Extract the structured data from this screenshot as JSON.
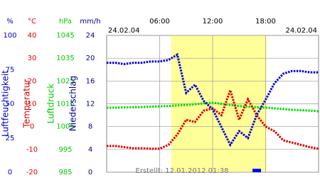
{
  "chart_data": {
    "type": "line",
    "date_left": "24.02.04",
    "date_right": "24.02.04",
    "footer": "Erstellt: 12.01.2012 01:38",
    "xlim": [
      0,
      24
    ],
    "xticks": [
      {
        "value": 6,
        "label": "06:00"
      },
      {
        "value": 12,
        "label": "12:00"
      },
      {
        "value": 18,
        "label": "18:00"
      }
    ],
    "shaded_region": [
      7.3,
      18.1
    ],
    "grid": true,
    "axes": [
      {
        "label": "Luftfeuchtigkeit",
        "unit": "%",
        "color": "#0000cc",
        "ylim": [
          0,
          100
        ],
        "yticks": [
          0,
          25,
          50,
          75,
          100
        ]
      },
      {
        "label": "Temperatur",
        "unit": "°C",
        "color": "#dd0000",
        "ylim": [
          -20,
          40
        ],
        "yticks": [
          -20,
          -10,
          0,
          10,
          20,
          30,
          40
        ]
      },
      {
        "label": "Luftdruck",
        "unit": "hPa",
        "color": "#00cc00",
        "ylim": [
          985,
          1045
        ],
        "yticks": [
          985,
          995,
          1005,
          1015,
          1025,
          1035,
          1045
        ]
      },
      {
        "label": "Niederschlag",
        "unit": "mm/h",
        "color": "#000088",
        "ylim": [
          0,
          24
        ],
        "yticks": [
          0,
          4,
          8,
          12,
          16,
          20,
          24
        ]
      }
    ],
    "x": [
      0,
      1,
      2,
      3,
      4,
      5,
      6,
      7,
      8,
      9,
      10,
      11,
      12,
      13,
      14,
      15,
      16,
      17,
      18,
      19,
      20,
      21,
      22,
      23,
      24
    ],
    "series": [
      {
        "axis": 2,
        "kind": "line",
        "color": "#00dd00",
        "values": [
          1013.3,
          1013.3,
          1013.4,
          1013.5,
          1013.6,
          1013.8,
          1013.9,
          1014,
          1014.3,
          1014.5,
          1014.8,
          1015.2,
          1015.5,
          1015,
          1014.5,
          1014,
          1013.8,
          1013.5,
          1013.3,
          1013,
          1012.7,
          1012.4,
          1012.2,
          1012,
          1011.7
        ]
      },
      {
        "axis": 1,
        "kind": "line",
        "color": "#dd0000",
        "values": [
          -8.5,
          -8.5,
          -9,
          -9.5,
          -9.5,
          -9.7,
          -9.7,
          -8,
          -3.5,
          3,
          2,
          7,
          8,
          5,
          16,
          3,
          12,
          5,
          0,
          -2,
          -6,
          -7,
          -8,
          -9,
          -9.7
        ]
      },
      {
        "axis": 0,
        "kind": "line",
        "color": "#0000dd",
        "values": [
          80,
          80,
          79,
          80,
          80,
          81,
          81,
          82,
          86,
          58,
          64,
          52,
          46,
          33,
          20,
          30,
          25,
          42,
          53,
          65,
          72,
          74,
          74,
          73,
          73
        ]
      },
      {
        "axis": 3,
        "kind": "bar",
        "color": "#0000ff",
        "values": [
          0,
          0,
          0,
          0,
          0,
          0,
          0,
          0,
          0,
          0,
          0,
          0,
          0,
          0,
          0,
          0,
          0,
          0.6,
          0,
          0,
          0,
          0,
          0,
          0,
          0
        ]
      }
    ]
  }
}
